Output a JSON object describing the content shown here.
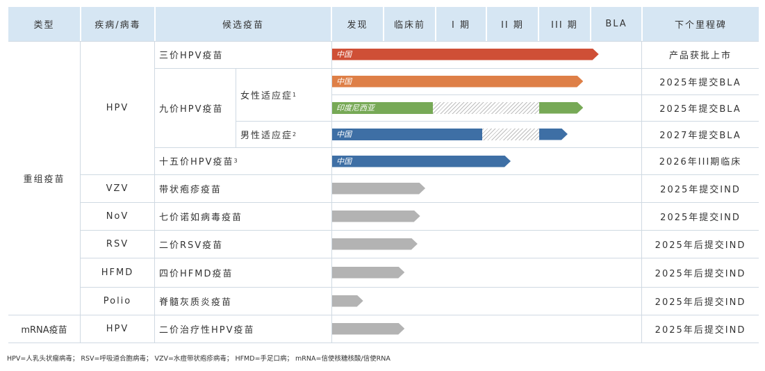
{
  "headers": {
    "type": "类型",
    "disease": "疾病/病毒",
    "candidate": "候选疫苗",
    "stages": [
      "发现",
      "临床前",
      "I 期",
      "II 期",
      "III 期",
      "BLA"
    ],
    "milestone": "下个里程碑"
  },
  "groups": {
    "recombinant": "重组疫苗",
    "mrna": "mRNA疫苗"
  },
  "diseases": {
    "hpv": "HPV",
    "vzv": "VZV",
    "nov": "NoV",
    "rsv": "RSV",
    "hfmd": "HFMD",
    "polio": "Polio",
    "hpv2": "HPV"
  },
  "candidates": {
    "c1": "三价HPV疫苗",
    "c2": "九价HPV疫苗",
    "c2_female": "女性适应症",
    "c2_female_sup": "1",
    "c2_male": "男性适应症",
    "c2_male_sup": "2",
    "c3": "十五价HPV疫苗",
    "c3_sup": "3",
    "c4": "带状疱疹疫苗",
    "c5": "七价诺如病毒疫苗",
    "c6": "二价RSV疫苗",
    "c7": "四价HFMD疫苗",
    "c8": "脊髓灰质炎疫苗",
    "c9": "二价治疗性HPV疫苗"
  },
  "milestones": [
    "产品获批上市",
    "2025年提交BLA",
    "2025年提交BLA",
    "2027年提交BLA",
    "2026年III期临床",
    "2025年提交IND",
    "2025年提交IND",
    "2025年后提交IND",
    "2025年后提交IND",
    "2025年后提交IND",
    "2025年后提交IND"
  ],
  "colors": {
    "red": "#cf4f36",
    "orange": "#de7f47",
    "green": "#77a956",
    "blue": "#3e6fa5",
    "gray": "#b3b3b3",
    "header": "#d6e6f3"
  },
  "chart_data": {
    "type": "bar",
    "stages": [
      "发现",
      "临床前",
      "I 期",
      "II 期",
      "III 期",
      "BLA"
    ],
    "rows": [
      {
        "candidate": "三价HPV疫苗",
        "label": "中国",
        "color": "red",
        "progress_stages": 5.15
      },
      {
        "candidate": "九价HPV疫苗 女性适应症",
        "label": "中国",
        "color": "orange",
        "progress_stages": 4.85
      },
      {
        "candidate": "九价HPV疫苗 女性适应症",
        "label": "印度尼西亚",
        "color": "green",
        "progress_stages": 4.85,
        "pending_from": 1.95,
        "pending_to": 4.0
      },
      {
        "candidate": "九价HPV疫苗 男性适应症",
        "label": "中国",
        "color": "blue",
        "progress_stages": 4.55,
        "pending_from": 2.9,
        "pending_to": 4.0
      },
      {
        "candidate": "十五价HPV疫苗",
        "label": "中国",
        "color": "blue",
        "progress_stages": 3.45
      },
      {
        "candidate": "带状疱疹疫苗",
        "label": "",
        "color": "gray",
        "progress_stages": 1.8
      },
      {
        "candidate": "七价诺如病毒疫苗",
        "label": "",
        "color": "gray",
        "progress_stages": 1.7
      },
      {
        "candidate": "二价RSV疫苗",
        "label": "",
        "color": "gray",
        "progress_stages": 1.65
      },
      {
        "candidate": "四价HFMD疫苗",
        "label": "",
        "color": "gray",
        "progress_stages": 1.4
      },
      {
        "candidate": "脊髓灰质炎疫苗",
        "label": "",
        "color": "gray",
        "progress_stages": 0.6
      },
      {
        "candidate": "二价治疗性HPV疫苗",
        "label": "",
        "color": "gray",
        "progress_stages": 1.4
      }
    ]
  },
  "footnote": "HPV=人乳头状瘤病毒； RSV=呼吸道合胞病毒； VZV=水痘带状疱疹病毒； HFMD=手足口病； mRNA=信使核糖核酸/信使RNA"
}
